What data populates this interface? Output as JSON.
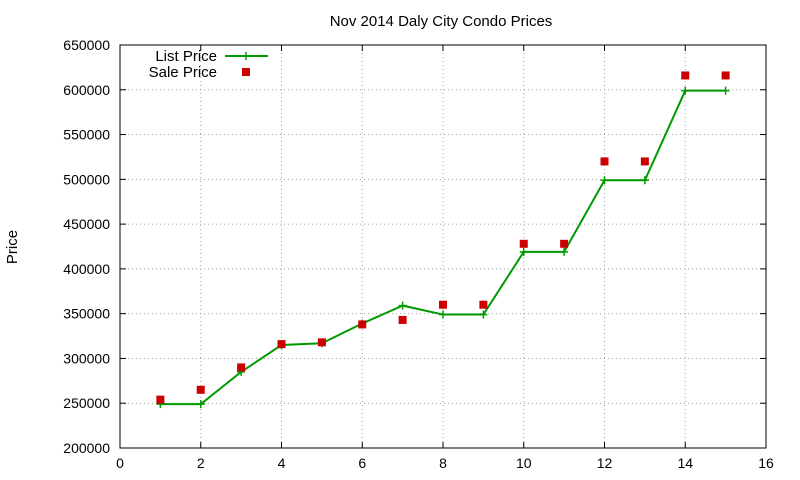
{
  "chart_data": {
    "type": "line",
    "title": "Nov 2014 Daly City Condo Prices",
    "xlabel": "",
    "ylabel": "Price",
    "xlim": [
      0,
      16
    ],
    "ylim": [
      200000,
      650000
    ],
    "xticks": [
      0,
      2,
      4,
      6,
      8,
      10,
      12,
      14,
      16
    ],
    "yticks": [
      200000,
      250000,
      300000,
      350000,
      400000,
      450000,
      500000,
      550000,
      600000,
      650000
    ],
    "grid": true,
    "legend_position": "top-left",
    "series": [
      {
        "name": "List Price",
        "style": "line+cross",
        "color": "#009900",
        "x": [
          1,
          2,
          3,
          4,
          5,
          6,
          7,
          8,
          9,
          10,
          11,
          12,
          13,
          14,
          15
        ],
        "y": [
          249000,
          249000,
          285000,
          315000,
          317000,
          339000,
          359000,
          349000,
          349000,
          419000,
          419000,
          499000,
          499000,
          599000,
          599000
        ]
      },
      {
        "name": "Sale Price",
        "style": "square",
        "color": "#cc0000",
        "x": [
          1,
          2,
          3,
          4,
          5,
          6,
          7,
          8,
          9,
          10,
          11,
          12,
          13,
          14,
          15
        ],
        "y": [
          254000,
          265000,
          290000,
          316000,
          318000,
          338000,
          343000,
          360000,
          360000,
          428000,
          428000,
          520000,
          520000,
          616000,
          616000
        ]
      }
    ]
  }
}
